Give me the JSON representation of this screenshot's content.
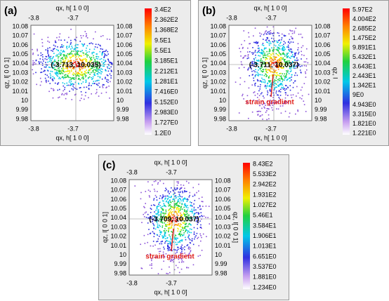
{
  "panels": [
    {
      "label": "(a)",
      "x_title_top": "qx, h[ 1 0 0]",
      "x_title_bottom": "qx, h[ 1 0 0]",
      "y_title": "qz, l[ 0 0 1]",
      "xticks_top": [
        "-3.8",
        "-3.7"
      ],
      "xticks_bottom": [
        "-3.8",
        "-3.7"
      ],
      "yticks": [
        "10.08",
        "10.07",
        "10.06",
        "10.05",
        "10.04",
        "10.03",
        "10.02",
        "10.01",
        "10",
        "9.99",
        "9.98"
      ],
      "colorbar": [
        "3.4E2",
        "2.362E2",
        "1.368E2",
        "9.5E1",
        "5.5E1",
        "3.185E1",
        "2.212E1",
        "1.281E1",
        "7.416E0",
        "5.152E0",
        "2.983E0",
        "1.727E0",
        "1.2E0"
      ],
      "peak": "(-3.713, 10.035)"
    },
    {
      "label": "(b)",
      "x_title_top": "qx, h[ 1 0 0]",
      "x_title_bottom": "qx, h[ 1 0 0]",
      "y_title": "qz, l[ 0 0 1]",
      "y_title_right": "qz, l",
      "xticks_top": [
        "-3.8",
        "-3.7"
      ],
      "xticks_bottom": [
        "-3.8",
        "-3.7"
      ],
      "yticks": [
        "10.08",
        "10.07",
        "10.06",
        "10.05",
        "10.04",
        "10.03",
        "10.02",
        "10.01",
        "10",
        "9.99",
        "9.98"
      ],
      "colorbar": [
        "5.97E2",
        "4.004E2",
        "2.685E2",
        "1.475E2",
        "9.891E1",
        "5.432E1",
        "3.643E1",
        "2.443E1",
        "1.342E1",
        "9E0",
        "4.943E0",
        "3.315E0",
        "1.821E0",
        "1.221E0"
      ],
      "peak": "(-3.711, 10.037)",
      "annotation": "strain gradient"
    },
    {
      "label": "(c)",
      "x_title_top": "qx, h[ 1 0 0]",
      "x_title_bottom": "qx, h[ 1 0 0]",
      "y_title": "qz, l[ 0 0 1]",
      "y_title_right": "qz, l[ 0 0 1]",
      "xticks_top": [
        "-3.8",
        "-3.7"
      ],
      "xticks_bottom": [
        "-3.8",
        "-3.7"
      ],
      "yticks": [
        "10.08",
        "10.07",
        "10.06",
        "10.05",
        "10.04",
        "10.03",
        "10.02",
        "10.01",
        "10",
        "9.99",
        "9.98"
      ],
      "colorbar": [
        "8.43E2",
        "5.533E2",
        "2.942E2",
        "1.931E2",
        "1.027E2",
        "5.46E1",
        "3.584E1",
        "1.906E1",
        "1.013E1",
        "6.651E0",
        "3.537E0",
        "1.881E0",
        "1.234E0"
      ],
      "peak": "(-3.709, 10.037)",
      "annotation": "strain gradient"
    }
  ]
}
